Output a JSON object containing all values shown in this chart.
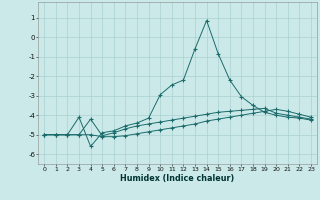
{
  "xlabel": "Humidex (Indice chaleur)",
  "background_color": "#cce9e9",
  "grid_color": "#aad0d0",
  "line_color": "#1a6b6b",
  "xlim": [
    -0.5,
    23.5
  ],
  "ylim": [
    -6.5,
    1.8
  ],
  "xticks": [
    0,
    1,
    2,
    3,
    4,
    5,
    6,
    7,
    8,
    9,
    10,
    11,
    12,
    13,
    14,
    15,
    16,
    17,
    18,
    19,
    20,
    21,
    22,
    23
  ],
  "yticks": [
    1,
    0,
    -1,
    -2,
    -3,
    -4,
    -5,
    -6
  ],
  "line1_x": [
    0,
    1,
    2,
    3,
    4,
    5,
    6,
    7,
    8,
    9,
    10,
    11,
    12,
    13,
    14,
    15,
    16,
    17,
    18,
    19,
    20,
    21,
    22,
    23
  ],
  "line1_y": [
    -5.0,
    -5.0,
    -5.0,
    -4.1,
    -5.6,
    -4.9,
    -4.8,
    -4.55,
    -4.4,
    -4.15,
    -2.95,
    -2.45,
    -2.2,
    -0.6,
    0.85,
    -0.85,
    -2.2,
    -3.05,
    -3.5,
    -3.85,
    -4.0,
    -4.1,
    -4.15,
    -4.25
  ],
  "line2_x": [
    0,
    1,
    2,
    3,
    4,
    5,
    6,
    7,
    8,
    9,
    10,
    11,
    12,
    13,
    14,
    15,
    16,
    17,
    18,
    19,
    20,
    21,
    22,
    23
  ],
  "line2_y": [
    -5.0,
    -5.0,
    -5.0,
    -5.0,
    -4.2,
    -5.05,
    -4.9,
    -4.7,
    -4.55,
    -4.45,
    -4.35,
    -4.25,
    -4.15,
    -4.05,
    -3.95,
    -3.85,
    -3.8,
    -3.75,
    -3.7,
    -3.65,
    -3.9,
    -4.0,
    -4.1,
    -4.2
  ],
  "line3_x": [
    0,
    1,
    2,
    3,
    4,
    5,
    6,
    7,
    8,
    9,
    10,
    11,
    12,
    13,
    14,
    15,
    16,
    17,
    18,
    19,
    20,
    21,
    22,
    23
  ],
  "line3_y": [
    -5.0,
    -5.0,
    -5.0,
    -5.0,
    -5.0,
    -5.1,
    -5.1,
    -5.05,
    -4.95,
    -4.85,
    -4.75,
    -4.65,
    -4.55,
    -4.45,
    -4.3,
    -4.2,
    -4.1,
    -4.0,
    -3.9,
    -3.8,
    -3.7,
    -3.8,
    -3.95,
    -4.1
  ]
}
